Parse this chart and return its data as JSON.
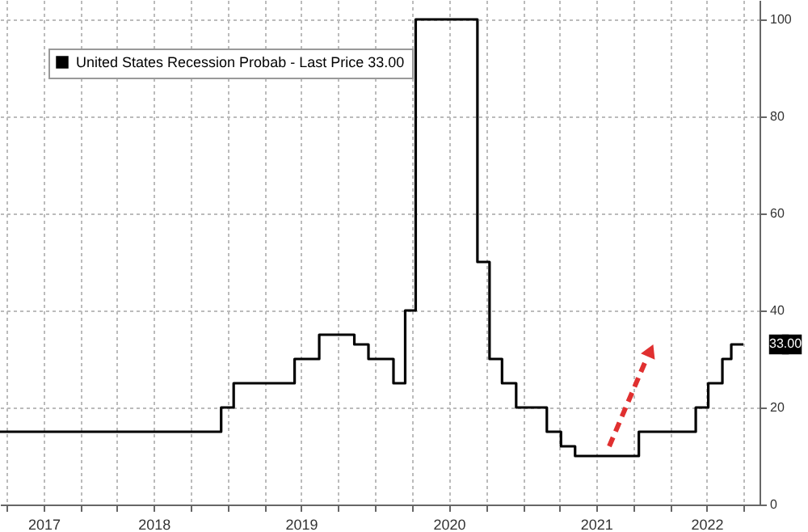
{
  "chart_data": {
    "type": "step",
    "x": [
      "2017-06-15",
      "2018-12-15",
      "2019-01-15",
      "2019-06-15",
      "2019-08-15",
      "2019-11-10",
      "2019-12-15",
      "2020-02-15",
      "2020-03-15",
      "2020-04-10",
      "2020-09-10",
      "2020-10-10",
      "2020-11-10",
      "2020-12-15",
      "2021-03-01",
      "2021-04-05",
      "2021-05-10",
      "2021-10-15",
      "2022-03-05",
      "2022-04-05",
      "2022-05-10",
      "2022-06-01",
      "2022-07-01"
    ],
    "series": [
      {
        "name": "United States Recession Probab - Last Price 33.00",
        "color": "#000000",
        "values": [
          15,
          20,
          25,
          30,
          35,
          33,
          30,
          25,
          40,
          100,
          50,
          30,
          25,
          20,
          15,
          12,
          10,
          15,
          20,
          25,
          30,
          33,
          33
        ]
      }
    ],
    "xlim": [
      "2017-06-15",
      "2022-08-10"
    ],
    "xticks": [
      {
        "value": "2017-07-01",
        "label": null
      },
      {
        "value": "2017-10-01",
        "label": "2017"
      },
      {
        "value": "2018-01-01",
        "label": null
      },
      {
        "value": "2018-04-01",
        "label": null
      },
      {
        "value": "2018-07-01",
        "label": "2018"
      },
      {
        "value": "2018-10-01",
        "label": null
      },
      {
        "value": "2019-01-01",
        "label": null
      },
      {
        "value": "2019-04-01",
        "label": null
      },
      {
        "value": "2019-07-01",
        "label": "2019"
      },
      {
        "value": "2019-10-01",
        "label": null
      },
      {
        "value": "2020-01-01",
        "label": null
      },
      {
        "value": "2020-04-01",
        "label": null
      },
      {
        "value": "2020-07-01",
        "label": "2020"
      },
      {
        "value": "2020-10-01",
        "label": null
      },
      {
        "value": "2021-01-01",
        "label": null
      },
      {
        "value": "2021-04-01",
        "label": null
      },
      {
        "value": "2021-07-01",
        "label": "2021"
      },
      {
        "value": "2021-10-01",
        "label": null
      },
      {
        "value": "2022-01-01",
        "label": null
      },
      {
        "value": "2022-04-01",
        "label": "2022"
      },
      {
        "value": "2022-07-01",
        "label": null
      }
    ],
    "ylim": [
      0,
      104
    ],
    "yticks": [
      0,
      20,
      40,
      60,
      80,
      100
    ],
    "grid": true,
    "legend": "top left",
    "line_style": "solid",
    "annotations": [
      {
        "text": "33.00",
        "x": "2022-07-01",
        "y": 33
      }
    ]
  }
}
